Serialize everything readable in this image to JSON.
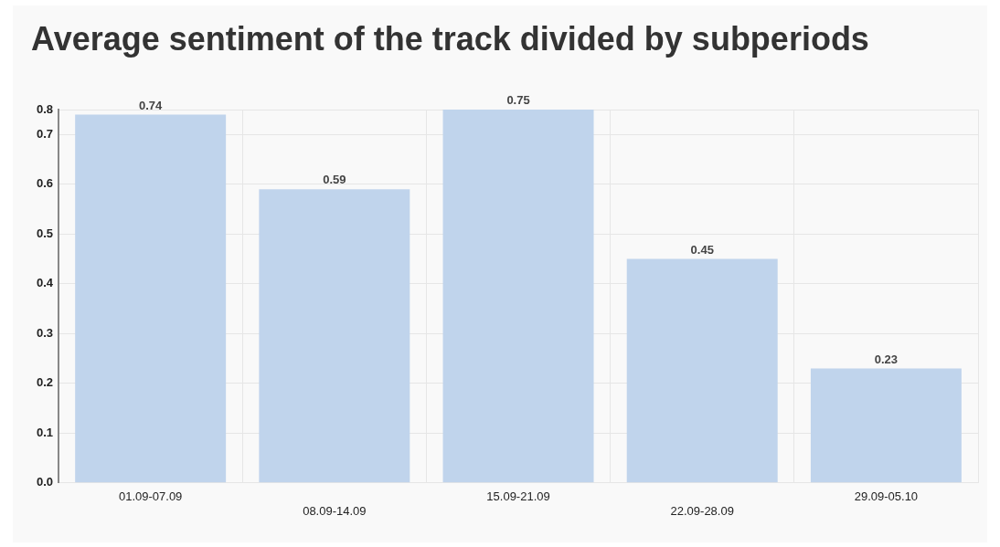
{
  "chart_data": {
    "type": "bar",
    "title": "Average sentiment of the track divided by subperiods",
    "categories": [
      "01.09-07.09",
      "08.09-14.09",
      "15.09-21.09",
      "22.09-28.09",
      "29.09-05.10"
    ],
    "values": [
      0.74,
      0.59,
      0.75,
      0.45,
      0.23
    ],
    "color": "#c0d4ec",
    "ylim": [
      0,
      0.75
    ],
    "yticks": [
      {
        "value": 0,
        "label": "0.0"
      },
      0.1,
      0.2,
      0.3,
      0.4,
      0.5,
      0.6,
      0.7,
      {
        "value": 0.75,
        "label": "0.8"
      }
    ],
    "grid": true,
    "data_labels": true
  }
}
